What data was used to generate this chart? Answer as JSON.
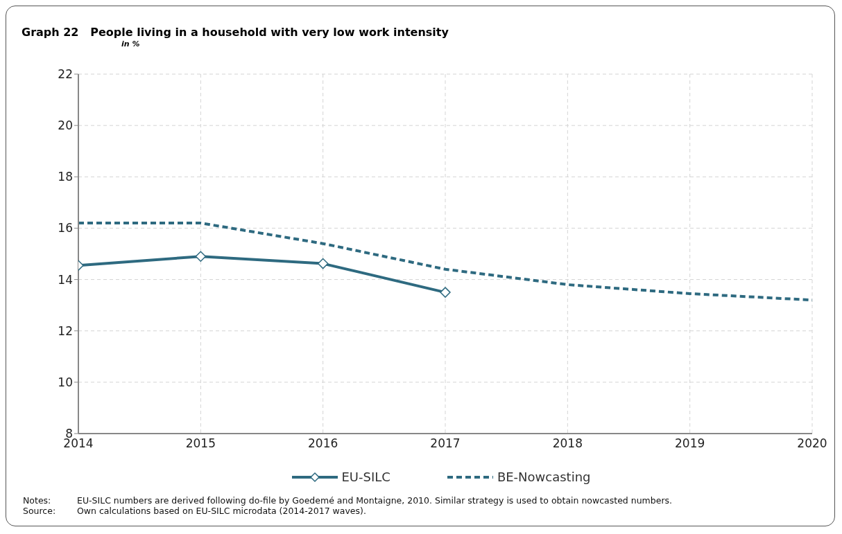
{
  "chart_data": {
    "type": "line",
    "title": "Graph 22   People living in a household with very low work intensity",
    "subtitle": "in %",
    "series": [
      {
        "name": "EU-SILC",
        "color": "#2e6a80",
        "x": [
          2014,
          2015,
          2016,
          2017
        ],
        "values": [
          14.55,
          14.9,
          14.62,
          13.5
        ],
        "marker": "diamond",
        "line_style": "solid"
      },
      {
        "name": "BE-Nowcasting",
        "color": "#2e6a80",
        "x": [
          2014,
          2015,
          2016,
          2017,
          2018,
          2019,
          2020
        ],
        "values": [
          16.2,
          16.2,
          15.4,
          14.4,
          13.8,
          13.45,
          13.2
        ],
        "marker": "none",
        "line_style": "dashed"
      }
    ],
    "xlim": [
      2014,
      2020
    ],
    "xticks": [
      2014,
      2015,
      2016,
      2017,
      2018,
      2019,
      2020
    ],
    "ylim": [
      8,
      22
    ],
    "yticks": [
      8,
      10,
      12,
      14,
      16,
      18,
      20,
      22
    ],
    "grid": true,
    "legend": "bottom",
    "annotations": [
      "Notes: EU-SILC numbers are derived following do-file by Goedemé and Montaigne, 2010. Similar strategy is used to obtain nowcasted numbers.",
      "Source: Own calculations based on EU-SILC microdata (2014-2017 waves)."
    ]
  }
}
